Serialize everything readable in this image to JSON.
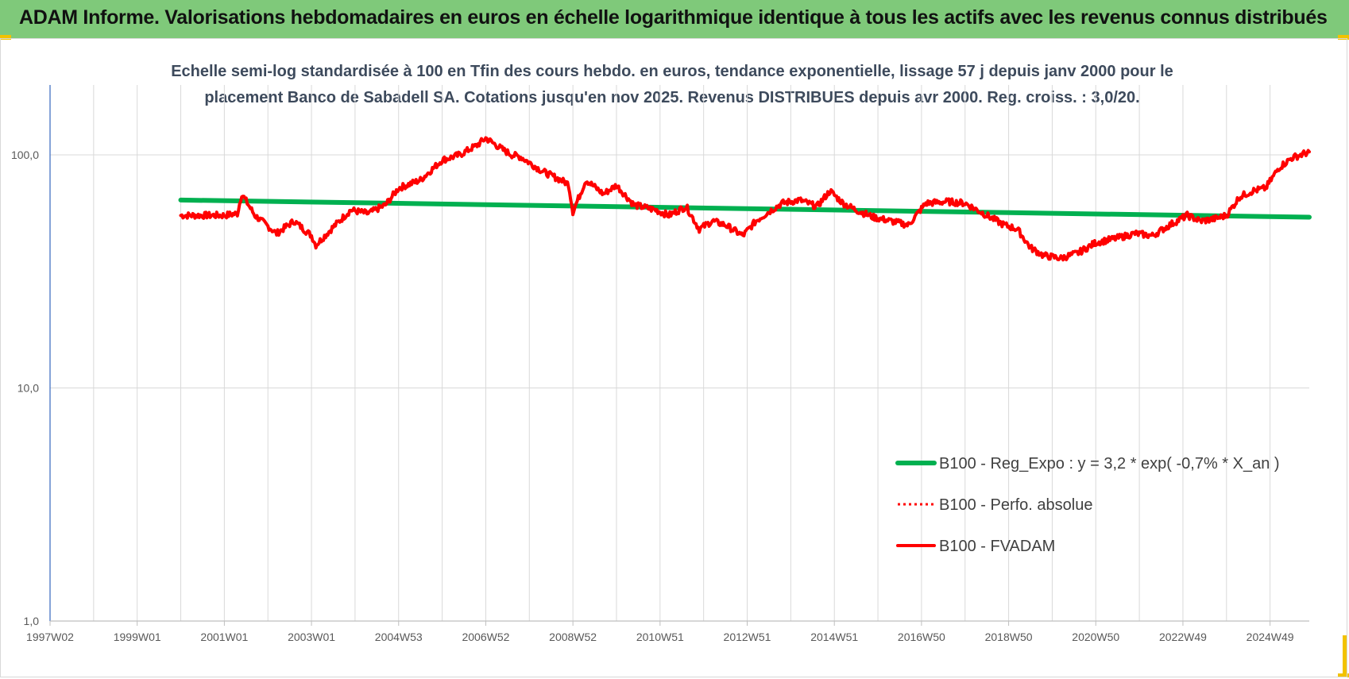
{
  "header": {
    "title": "ADAM Informe. Valorisations hebdomadaires en euros en échelle logarithmique identique à tous les actifs avec les revenus connus distribués"
  },
  "colors": {
    "banner": "#7fc97a",
    "regression": "#00b050",
    "fvadam": "#ff0000",
    "axis": "#4472c4",
    "grid": "#d9d9d9"
  },
  "chart_data": {
    "type": "line",
    "title_line1": "Echelle semi-log standardisée à 100 en Tfin des cours hebdo. en euros, tendance exponentielle, lissage 57 j depuis janv 2000 pour le",
    "title_line2": "placement Banco de Sabadell SA. Cotations jusqu'en nov 2025. Revenus DISTRIBUES depuis avr 2000. Reg. croiss. : 3,0/20.",
    "y_scale": "log",
    "ylim": [
      1,
      200
    ],
    "y_ticks": [
      {
        "value": 1,
        "label": "1,0"
      },
      {
        "value": 10,
        "label": "10,0"
      },
      {
        "value": 100,
        "label": "100,0"
      }
    ],
    "xlim": [
      1997.0,
      2025.9
    ],
    "x_ticks": [
      {
        "year": 1997.0,
        "label": "1997W02"
      },
      {
        "year": 1999.0,
        "label": "1999W01"
      },
      {
        "year": 2001.0,
        "label": "2001W01"
      },
      {
        "year": 2003.0,
        "label": "2003W01"
      },
      {
        "year": 2005.0,
        "label": "2004W53"
      },
      {
        "year": 2007.0,
        "label": "2006W52"
      },
      {
        "year": 2009.0,
        "label": "2008W52"
      },
      {
        "year": 2011.0,
        "label": "2010W51"
      },
      {
        "year": 2013.0,
        "label": "2012W51"
      },
      {
        "year": 2015.0,
        "label": "2014W51"
      },
      {
        "year": 2017.0,
        "label": "2016W50"
      },
      {
        "year": 2019.0,
        "label": "2018W50"
      },
      {
        "year": 2021.0,
        "label": "2020W50"
      },
      {
        "year": 2023.0,
        "label": "2022W49"
      },
      {
        "year": 2025.0,
        "label": "2024W49"
      }
    ],
    "legend_position": "right-middle",
    "series": [
      {
        "name": "B100 - Reg_Expo : y = 3,2 * exp( -0,7% *  X_an )",
        "style": "solid-thick",
        "color": "#00b050",
        "x": [
          2000.0,
          2025.9
        ],
        "y": [
          64,
          54
        ]
      },
      {
        "name": "B100 - Perfo. absolue",
        "style": "dotted",
        "color": "#ff0000",
        "x": [],
        "y": []
      },
      {
        "name": "B100 - FVADAM",
        "style": "solid-thick",
        "color": "#ff0000",
        "x": [
          2000.0,
          2000.6,
          2001.0,
          2001.3,
          2001.4,
          2001.7,
          2002.2,
          2002.6,
          2003.0,
          2003.1,
          2003.5,
          2003.9,
          2004.3,
          2004.7,
          2005.0,
          2005.5,
          2006.0,
          2006.4,
          2006.8,
          2007.0,
          2007.4,
          2007.6,
          2007.8,
          2008.1,
          2008.3,
          2008.6,
          2008.9,
          2009.0,
          2009.3,
          2009.7,
          2010.0,
          2010.4,
          2010.9,
          2011.2,
          2011.6,
          2011.9,
          2012.2,
          2012.5,
          2012.9,
          2013.2,
          2013.5,
          2013.8,
          2014.2,
          2014.6,
          2014.9,
          2015.2,
          2015.5,
          2015.9,
          2016.3,
          2016.7,
          2017.1,
          2017.6,
          2018.0,
          2018.5,
          2018.9,
          2019.2,
          2019.5,
          2019.8,
          2020.2,
          2020.6,
          2021.0,
          2021.5,
          2021.9,
          2022.3,
          2022.7,
          2023.1,
          2023.4,
          2023.7,
          2024.0,
          2024.3,
          2024.6,
          2024.9,
          2025.2,
          2025.5,
          2025.9
        ],
        "y": [
          55,
          55,
          55,
          56,
          68,
          55,
          46,
          52,
          45,
          41,
          49,
          58,
          56,
          61,
          72,
          78,
          95,
          100,
          110,
          118,
          105,
          100,
          98,
          90,
          85,
          80,
          75,
          57,
          78,
          68,
          74,
          61,
          58,
          55,
          60,
          48,
          52,
          50,
          45,
          52,
          57,
          62,
          64,
          60,
          70,
          62,
          58,
          54,
          52,
          50,
          62,
          63,
          62,
          55,
          50,
          48,
          40,
          37,
          36,
          38,
          42,
          44,
          46,
          45,
          50,
          55,
          52,
          53,
          55,
          66,
          70,
          72,
          88,
          97,
          103
        ]
      }
    ]
  }
}
